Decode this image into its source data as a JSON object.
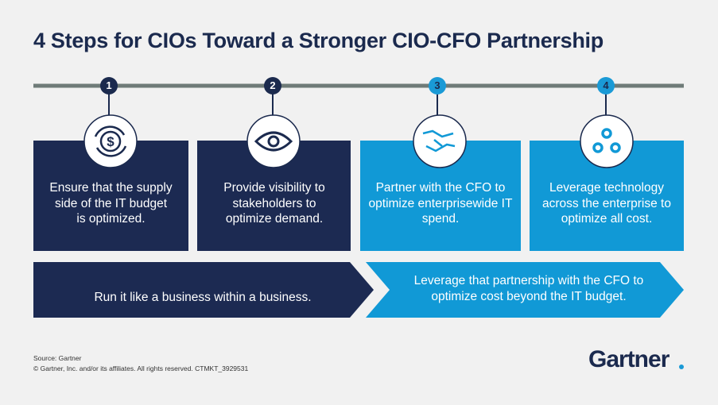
{
  "title": "4 Steps for CIOs Toward a Stronger CIO-CFO Partnership",
  "steps": [
    {
      "number": "1",
      "text": "Ensure that the supply side of the IT budget is optimized."
    },
    {
      "number": "2",
      "text": "Provide visibility to stakeholders to optimize demand."
    },
    {
      "number": "3",
      "text": "Partner with the CFO to optimize enterprisewide IT spend."
    },
    {
      "number": "4",
      "text": "Leverage technology across the enterprise to optimize all cost."
    }
  ],
  "banners": [
    "Run it like a business within a business.",
    "Leverage that partnership with the CFO to optimize cost beyond the IT budget."
  ],
  "footer": {
    "source": "Source: Gartner",
    "copyright": "© Gartner, Inc. and/or its affiliates. All rights reserved. CTMKT_3929531"
  },
  "logo": "Gartner"
}
